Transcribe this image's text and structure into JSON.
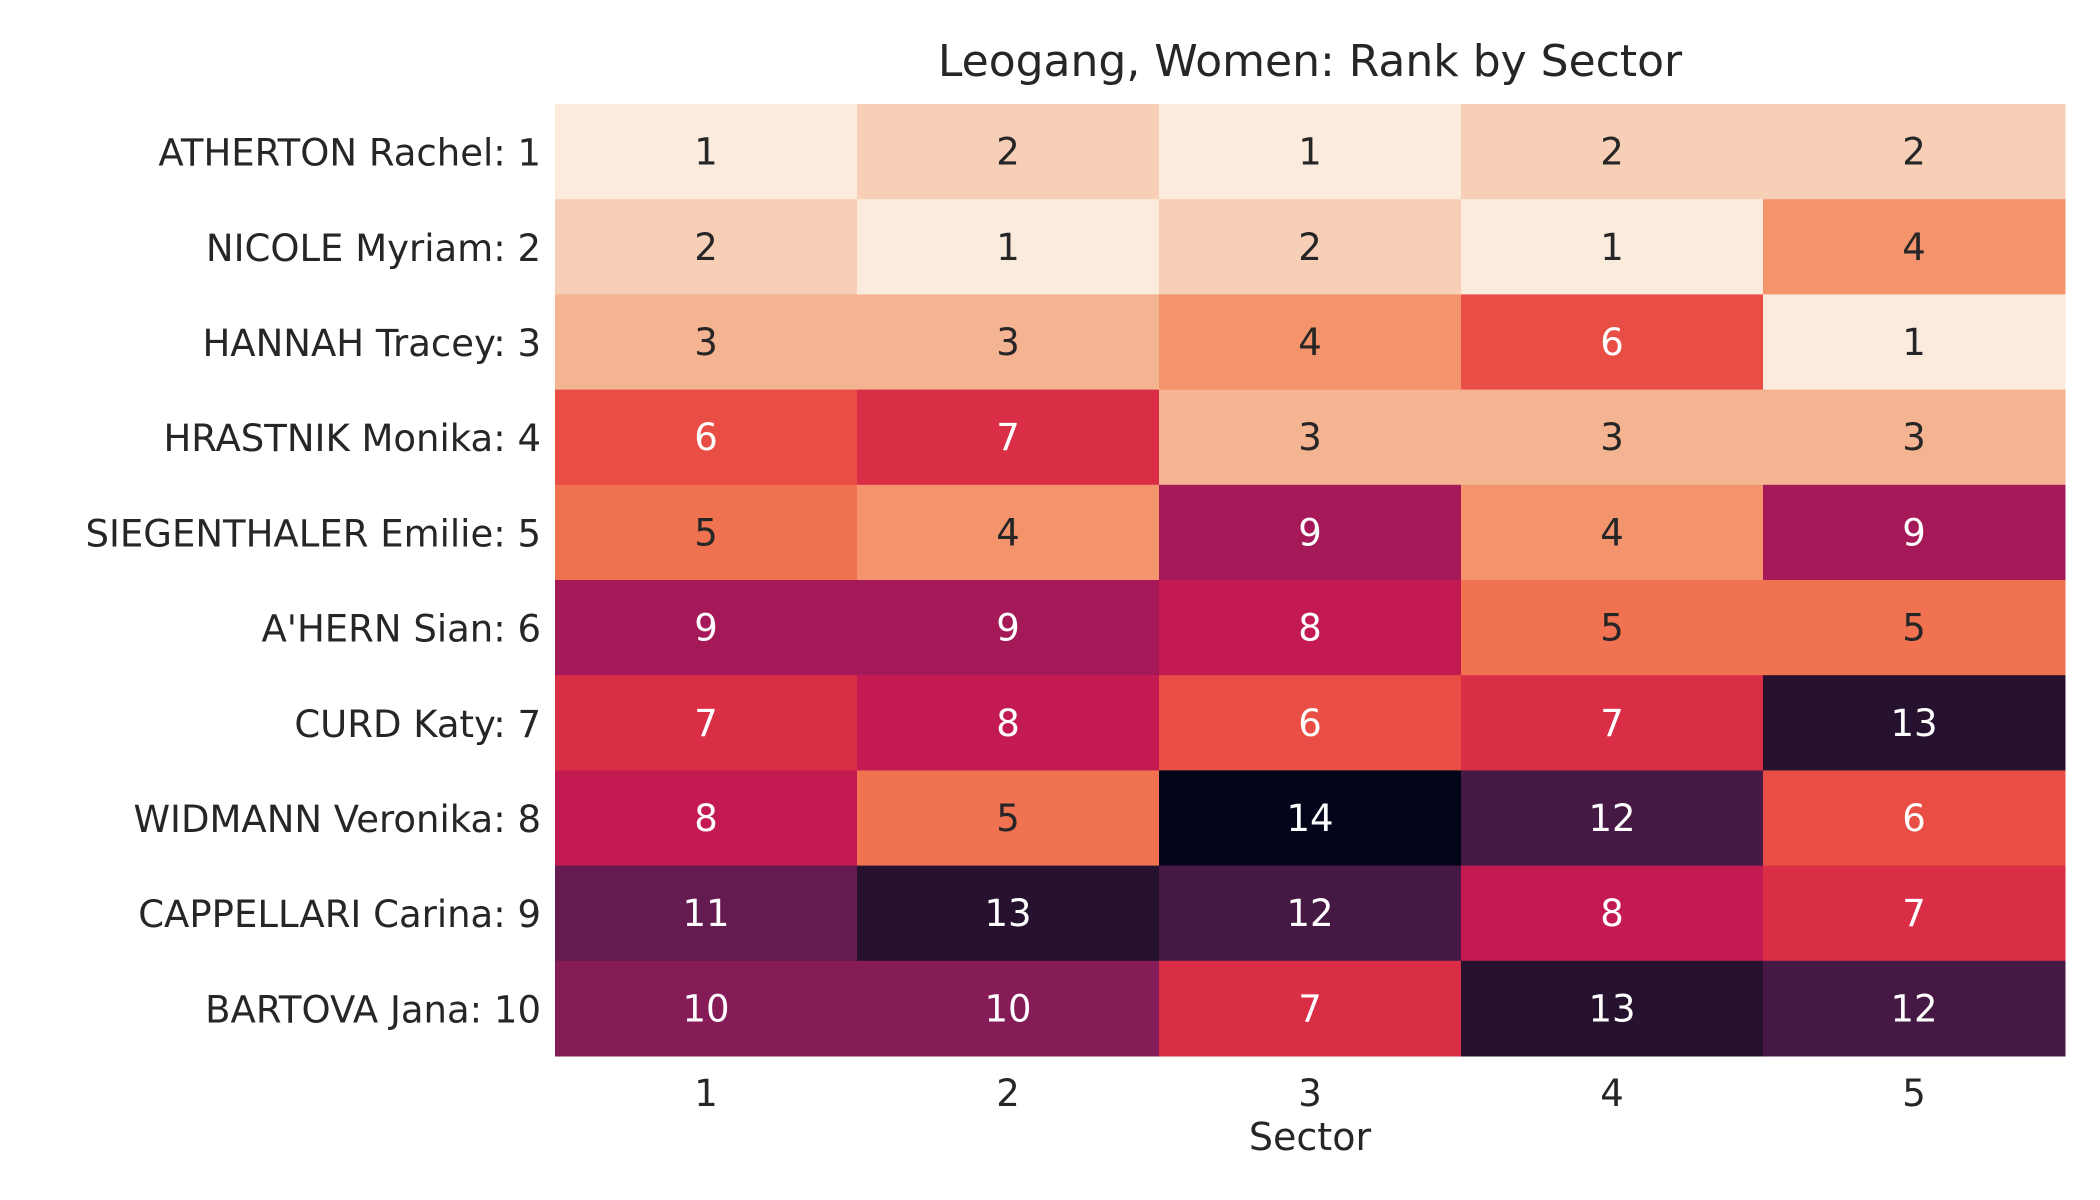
{
  "chart_data": {
    "type": "heatmap",
    "title": "Leogang, Women: Rank by Sector",
    "xlabel": "Sector",
    "ylabel": "",
    "x": [
      "1",
      "2",
      "3",
      "4",
      "5"
    ],
    "y": [
      "ATHERTON Rachel: 1",
      "NICOLE Myriam: 2",
      "HANNAH Tracey: 3",
      "HRASTNIK Monika: 4",
      "SIEGENTHALER Emilie: 5",
      "A'HERN Sian: 6",
      "CURD Katy: 7",
      "WIDMANN Veronika: 8",
      "CAPPELLARI Carina: 9",
      "BARTOVA Jana: 10"
    ],
    "values": [
      [
        1,
        2,
        1,
        2,
        2
      ],
      [
        2,
        1,
        2,
        1,
        4
      ],
      [
        3,
        3,
        4,
        6,
        1
      ],
      [
        6,
        7,
        3,
        3,
        3
      ],
      [
        5,
        4,
        9,
        4,
        9
      ],
      [
        9,
        9,
        8,
        5,
        5
      ],
      [
        7,
        8,
        6,
        7,
        13
      ],
      [
        8,
        5,
        14,
        12,
        6
      ],
      [
        11,
        13,
        12,
        8,
        7
      ],
      [
        10,
        10,
        7,
        13,
        12
      ]
    ],
    "value_range": [
      1,
      14
    ],
    "colormap": "rocket_r",
    "colorbar": false,
    "grid": false,
    "annotated": true
  }
}
